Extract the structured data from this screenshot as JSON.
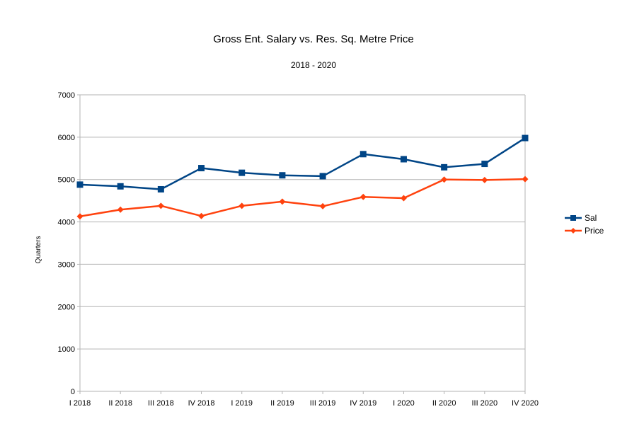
{
  "chart_data": {
    "type": "line",
    "title": "Gross Ent. Salary vs. Res. Sq. Metre Price",
    "subtitle": "2018 - 2020",
    "ylabel": "Quarters",
    "xlabel": "",
    "ylim": [
      0,
      7000
    ],
    "yticks": [
      0,
      1000,
      2000,
      3000,
      4000,
      5000,
      6000,
      7000
    ],
    "grid": true,
    "legend_position": "right",
    "categories": [
      "I 2018",
      "II 2018",
      "III 2018",
      "IV 2018",
      "I 2019",
      "II 2019",
      "III 2019",
      "IV 2019",
      "I 2020",
      "II 2020",
      "III 2020",
      "IV 2020"
    ],
    "series": [
      {
        "name": "Sal",
        "color": "#004586",
        "marker": "square",
        "values": [
          4880,
          4840,
          4770,
          5270,
          5160,
          5100,
          5080,
          5600,
          5480,
          5290,
          5370,
          5980
        ]
      },
      {
        "name": "Price",
        "color": "#ff420e",
        "marker": "diamond",
        "values": [
          4130,
          4290,
          4380,
          4140,
          4380,
          4480,
          4370,
          4590,
          4560,
          5000,
          4990,
          5010
        ]
      }
    ]
  }
}
